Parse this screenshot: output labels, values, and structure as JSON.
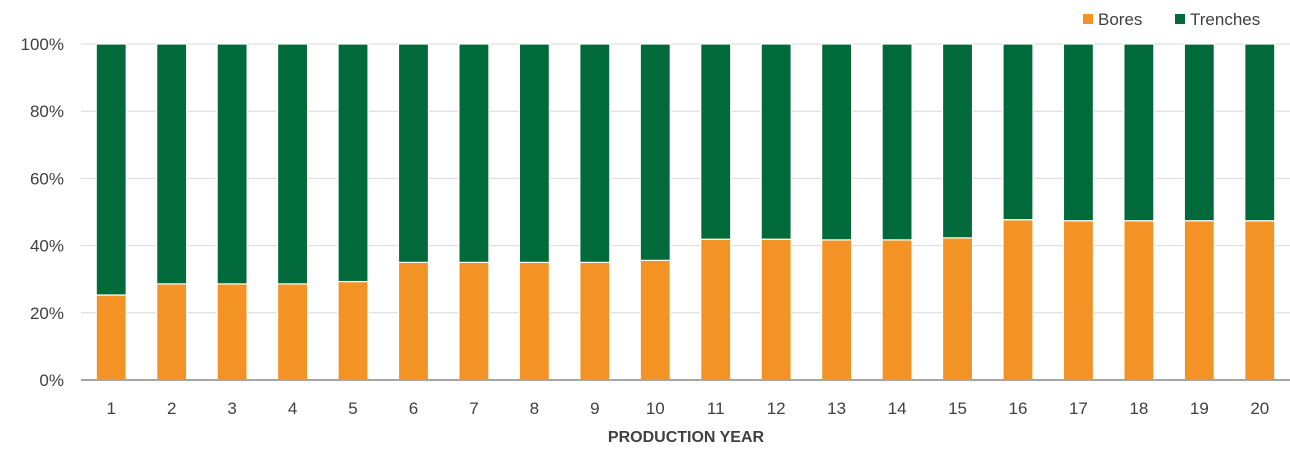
{
  "chart_data": {
    "type": "bar",
    "stacked": true,
    "percent_stacked": true,
    "title": "",
    "xlabel": "PRODUCTION YEAR",
    "ylabel": "",
    "ylim": [
      0,
      100
    ],
    "yticks": [
      "0%",
      "20%",
      "40%",
      "60%",
      "80%",
      "100%"
    ],
    "ytick_values": [
      0,
      20,
      40,
      60,
      80,
      100
    ],
    "grid": true,
    "legend_position": "top-right",
    "categories": [
      "1",
      "2",
      "3",
      "4",
      "5",
      "6",
      "7",
      "8",
      "9",
      "10",
      "11",
      "12",
      "13",
      "14",
      "15",
      "16",
      "17",
      "18",
      "19",
      "20"
    ],
    "series": [
      {
        "name": "Bores",
        "color": "#F39325",
        "values": [
          25.3,
          28.6,
          28.6,
          28.6,
          29.3,
          35.0,
          35.0,
          35.0,
          35.0,
          35.6,
          41.9,
          41.9,
          41.7,
          41.7,
          42.3,
          47.7,
          47.4,
          47.4,
          47.4,
          47.4
        ]
      },
      {
        "name": "Trenches",
        "color": "#006A3B",
        "values": [
          74.7,
          71.4,
          71.4,
          71.4,
          70.7,
          65.0,
          65.0,
          65.0,
          65.0,
          64.4,
          58.1,
          58.1,
          58.3,
          58.3,
          57.7,
          52.3,
          52.6,
          52.6,
          52.6,
          52.6
        ]
      }
    ]
  }
}
